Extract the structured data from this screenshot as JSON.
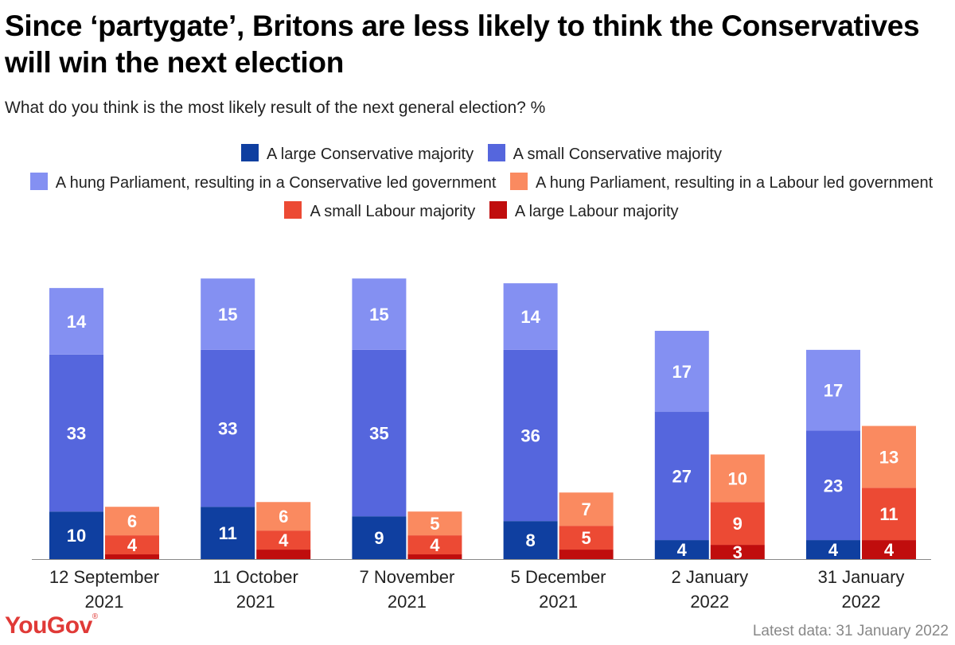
{
  "header": {
    "title": "Since ‘partygate’, Britons are less likely to think the Conservatives will win the next election",
    "subtitle": "What do you think is the most likely result of the next general election? %"
  },
  "legend": {
    "items": [
      {
        "label": "A large Conservative majority",
        "color": "#0f3fa0"
      },
      {
        "label": "A small Conservative majority",
        "color": "#5566dd"
      },
      {
        "label": "A hung Parliament, resulting in a Conservative led government",
        "color": "#8490f2"
      },
      {
        "label": "A hung Parliament, resulting in a Labour led government",
        "color": "#fa8a60"
      },
      {
        "label": "A small Labour majority",
        "color": "#ec4a34"
      },
      {
        "label": "A large Labour majority",
        "color": "#c00d0d"
      }
    ]
  },
  "footer": {
    "brand": "YouGov",
    "brand_mark": "®",
    "latest": "Latest data: 31 January 2022"
  },
  "chart_data": {
    "type": "bar",
    "stacked": true,
    "grouped": true,
    "categories": [
      [
        "12 September",
        "2021"
      ],
      [
        "11 October",
        "2021"
      ],
      [
        "7 November",
        "2021"
      ],
      [
        "5 December",
        "2021"
      ],
      [
        "2 January",
        "2022"
      ],
      [
        "31 January",
        "2022"
      ]
    ],
    "groups": [
      {
        "stack": "Conservative",
        "series": [
          {
            "name": "A large Conservative majority",
            "color": "#0f3fa0",
            "values": [
              10,
              11,
              9,
              8,
              4,
              4
            ]
          },
          {
            "name": "A small Conservative majority",
            "color": "#5566dd",
            "values": [
              33,
              33,
              35,
              36,
              27,
              23
            ]
          },
          {
            "name": "A hung Parliament, resulting in a Conservative led government",
            "color": "#8490f2",
            "values": [
              14,
              15,
              15,
              14,
              17,
              17
            ]
          }
        ]
      },
      {
        "stack": "Labour",
        "series": [
          {
            "name": "A large Labour majority",
            "color": "#c00d0d",
            "values": [
              1,
              2,
              1,
              2,
              3,
              4
            ]
          },
          {
            "name": "A small Labour majority",
            "color": "#ec4a34",
            "values": [
              4,
              4,
              4,
              5,
              9,
              11
            ]
          },
          {
            "name": "A hung Parliament, resulting in a Labour led government",
            "color": "#fa8a60",
            "values": [
              6,
              6,
              5,
              7,
              10,
              13
            ]
          }
        ]
      }
    ],
    "label_min": 3,
    "ylim": [
      0,
      60
    ],
    "grid": false,
    "legend_position": "top-center"
  }
}
